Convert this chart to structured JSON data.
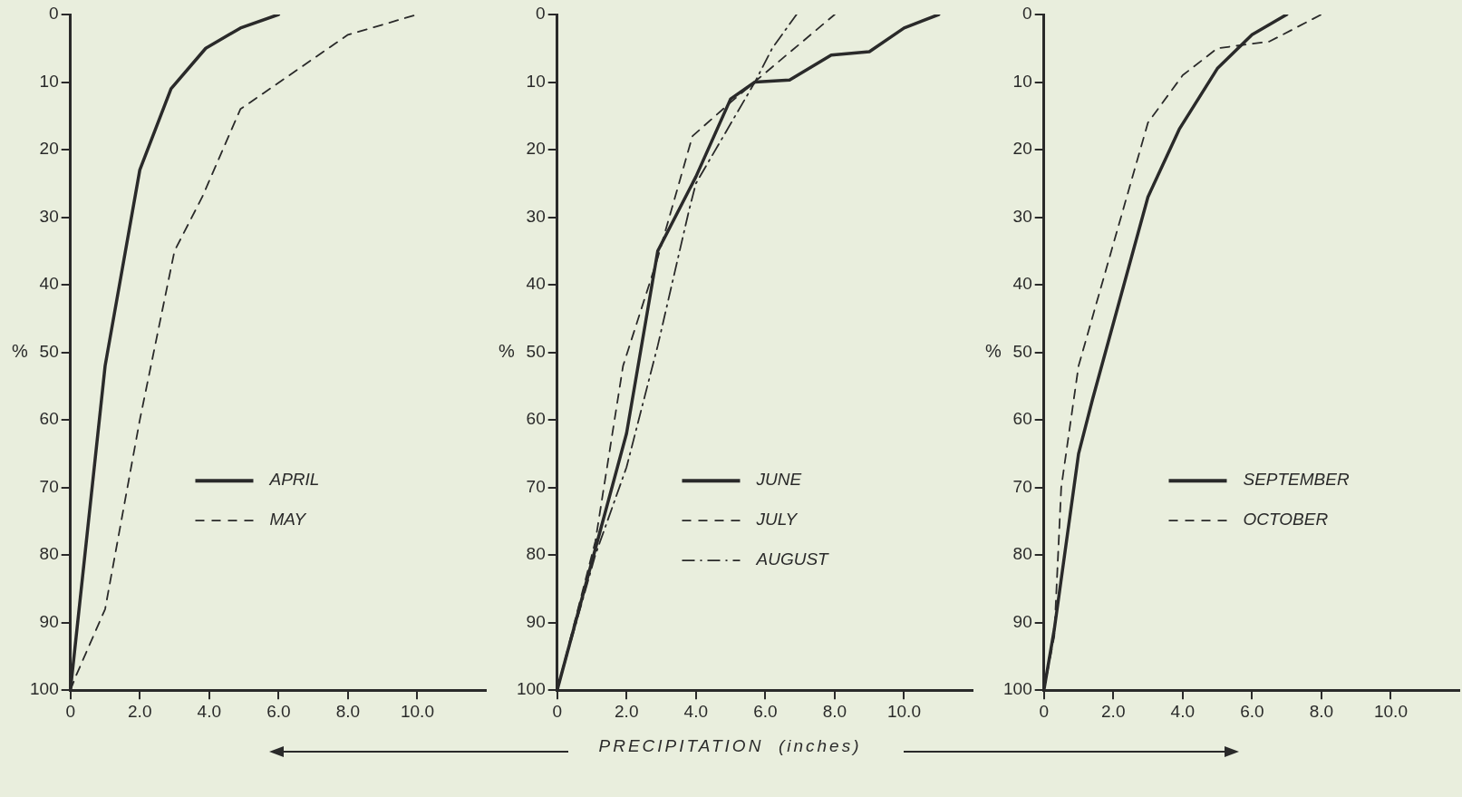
{
  "chart_data": [
    {
      "type": "line",
      "xlim": [
        0,
        12
      ],
      "xticks": [
        {
          "value": 0,
          "label": "0"
        },
        {
          "value": 2,
          "label": "2.0"
        },
        {
          "value": 4,
          "label": "4.0"
        },
        {
          "value": 6,
          "label": "6.0"
        },
        {
          "value": 8,
          "label": "8.0"
        },
        {
          "value": 10,
          "label": "10.0"
        }
      ],
      "ylim": [
        100,
        0
      ],
      "yticks": [
        0,
        10,
        20,
        30,
        40,
        50,
        60,
        70,
        80,
        90,
        100
      ],
      "ylabel": "%",
      "legend": "bottom",
      "marker": "none",
      "series": [
        {
          "name": "APRIL",
          "color": "#2a2a2a",
          "line_style": "solid",
          "x": [
            0,
            1.0,
            2.0,
            2.9,
            3.9,
            4.9,
            6.0
          ],
          "values": [
            100,
            52,
            23,
            11,
            5,
            2,
            0
          ]
        },
        {
          "name": "MAY",
          "color": "#2a2a2a",
          "line_style": "dashed",
          "x": [
            0,
            0.15,
            1.0,
            2.0,
            3.0,
            3.8,
            4.9,
            8.0,
            10.0
          ],
          "values": [
            100,
            98,
            88,
            60,
            35,
            27,
            14,
            3,
            0
          ]
        }
      ]
    },
    {
      "type": "line",
      "xlim": [
        0,
        12
      ],
      "xticks": [
        {
          "value": 0,
          "label": "0"
        },
        {
          "value": 2,
          "label": "2.0"
        },
        {
          "value": 4,
          "label": "4.0"
        },
        {
          "value": 6,
          "label": "6.0"
        },
        {
          "value": 8,
          "label": "8.0"
        },
        {
          "value": 10,
          "label": "10.0"
        }
      ],
      "ylim": [
        100,
        0
      ],
      "yticks": [
        0,
        10,
        20,
        30,
        40,
        50,
        60,
        70,
        80,
        90,
        100
      ],
      "ylabel": "%",
      "xlabel": "PRECIPITATION  (inches)",
      "legend": "bottom",
      "marker": "none",
      "series": [
        {
          "name": "JUNE",
          "color": "#2a2a2a",
          "line_style": "solid",
          "x": [
            0,
            2.0,
            2.9,
            4.0,
            5.0,
            5.7,
            6.7,
            7.9,
            9.0,
            10.0,
            11.0
          ],
          "values": [
            100,
            62,
            35,
            24,
            12.5,
            10,
            9.7,
            6,
            5.5,
            2,
            0
          ]
        },
        {
          "name": "JULY",
          "color": "#2a2a2a",
          "line_style": "dashed",
          "x": [
            0,
            1.1,
            1.9,
            2.9,
            3.9,
            5.0,
            5.8,
            8.0
          ],
          "values": [
            100,
            78,
            52,
            36,
            18,
            13,
            9.5,
            0
          ]
        },
        {
          "name": "AUGUST",
          "color": "#2a2a2a",
          "line_style": "dashdot",
          "x": [
            0,
            1.1,
            2.0,
            2.9,
            3.8,
            4.0,
            5.7,
            6.2,
            6.9
          ],
          "values": [
            100,
            80,
            67,
            49,
            29,
            25,
            10,
            5,
            0
          ]
        }
      ]
    },
    {
      "type": "line",
      "xlim": [
        0,
        12
      ],
      "xticks": [
        {
          "value": 0,
          "label": "0"
        },
        {
          "value": 2,
          "label": "2.0"
        },
        {
          "value": 4,
          "label": "4.0"
        },
        {
          "value": 6,
          "label": "6.0"
        },
        {
          "value": 8,
          "label": "8.0"
        },
        {
          "value": 10,
          "label": "10.0"
        }
      ],
      "ylim": [
        100,
        0
      ],
      "yticks": [
        0,
        10,
        20,
        30,
        40,
        50,
        60,
        70,
        80,
        90,
        100
      ],
      "ylabel": "%",
      "legend": "bottom",
      "marker": "none",
      "series": [
        {
          "name": "SEPTEMBER",
          "color": "#2a2a2a",
          "line_style": "solid",
          "x": [
            0,
            0.3,
            1.0,
            1.4,
            3.0,
            3.9,
            5.0,
            6.0,
            7.0
          ],
          "values": [
            100,
            91,
            65,
            57,
            27,
            17,
            8,
            3,
            0
          ]
        },
        {
          "name": "OCTOBER",
          "color": "#2a2a2a",
          "line_style": "dashed",
          "x": [
            0,
            0.3,
            0.5,
            1.0,
            3.0,
            4.0,
            5.0,
            6.5,
            8.0
          ],
          "values": [
            100,
            92,
            70,
            52,
            16,
            9,
            5,
            4,
            0
          ]
        }
      ]
    }
  ]
}
